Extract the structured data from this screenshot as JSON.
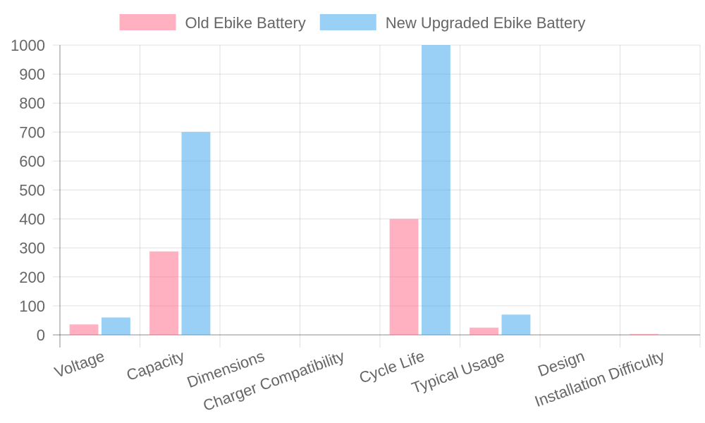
{
  "chart_data": {
    "type": "bar",
    "categories": [
      "Voltage",
      "Capacity",
      "Dimensions",
      "Charger Compatibility",
      "Cycle Life",
      "Typical Usage",
      "Design",
      "Installation Difficulty"
    ],
    "series": [
      {
        "name": "Old Ebike Battery",
        "color": "rgba(255,99,132,0.5)",
        "values": [
          36,
          288,
          0,
          0,
          400,
          25,
          0,
          3
        ]
      },
      {
        "name": "New Upgraded Ebike Battery",
        "color": "rgba(54,162,235,0.5)",
        "values": [
          60,
          700,
          0,
          0,
          1000,
          70,
          0,
          0
        ]
      }
    ],
    "ylim": [
      0,
      1000
    ],
    "yticks": [
      0,
      100,
      200,
      300,
      400,
      500,
      600,
      700,
      800,
      900,
      1000
    ],
    "grid": true
  }
}
